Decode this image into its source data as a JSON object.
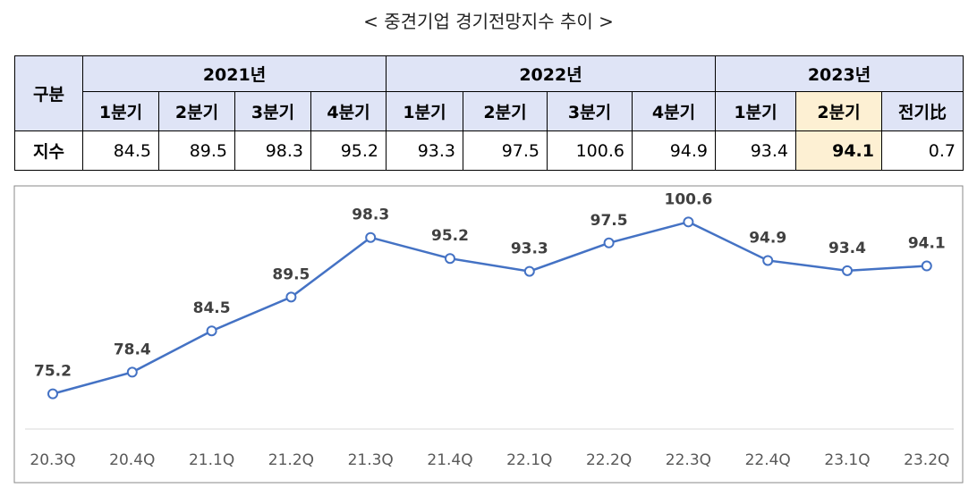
{
  "title": "< 중견기업 경기전망지수 추이 >",
  "table": {
    "header": {
      "corner": "구분",
      "years": [
        "2021년",
        "2022년",
        "2023년"
      ],
      "quarters": [
        "1분기",
        "2분기",
        "3분기",
        "4분기",
        "1분기",
        "2분기",
        "3분기",
        "4분기",
        "1분기",
        "2분기",
        "전기比"
      ]
    },
    "rows": [
      [
        "지수",
        "84.5",
        "89.5",
        "98.3",
        "95.2",
        "93.3",
        "97.5",
        "100.6",
        "94.9",
        "93.4",
        "94.1",
        "0.7"
      ]
    ]
  },
  "chart_data": {
    "type": "line",
    "categories": [
      "20.3Q",
      "20.4Q",
      "21.1Q",
      "21.2Q",
      "21.3Q",
      "21.4Q",
      "22.1Q",
      "22.2Q",
      "22.3Q",
      "22.4Q",
      "23.1Q",
      "23.2Q"
    ],
    "values": [
      75.2,
      78.4,
      84.5,
      89.5,
      98.3,
      95.2,
      93.3,
      97.5,
      100.6,
      94.9,
      93.4,
      94.1
    ],
    "color": "#4472c4",
    "ylim": [
      70,
      105
    ]
  }
}
